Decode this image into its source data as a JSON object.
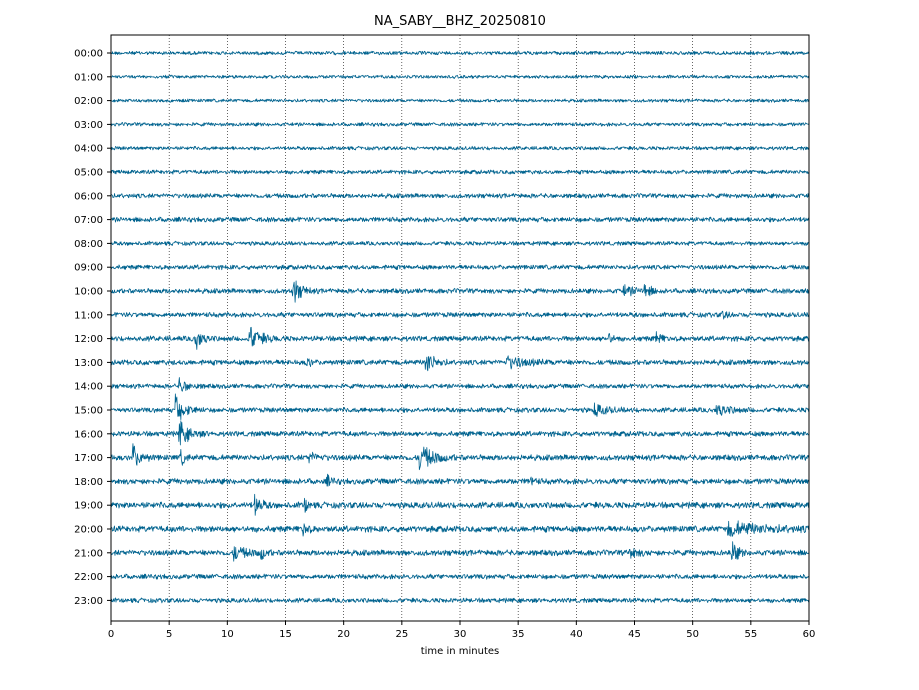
{
  "chart_data": {
    "type": "line",
    "title": "NA_SABY__BHZ_20250810",
    "xlabel": "time in minutes",
    "ylabel": "",
    "xlim": [
      0,
      60
    ],
    "x_ticks": [
      "0",
      "5",
      "10",
      "15",
      "20",
      "25",
      "30",
      "35",
      "40",
      "45",
      "50",
      "55",
      "60"
    ],
    "y_tick_labels": [
      "00:00",
      "01:00",
      "02:00",
      "03:00",
      "04:00",
      "05:00",
      "06:00",
      "07:00",
      "08:00",
      "09:00",
      "10:00",
      "11:00",
      "12:00",
      "13:00",
      "14:00",
      "15:00",
      "16:00",
      "17:00",
      "18:00",
      "19:00",
      "20:00",
      "21:00",
      "22:00",
      "23:00"
    ],
    "trace_color": "#00638f",
    "grid": "vertical dotted lines at each x tick",
    "legend": "none",
    "background_noise_amplitude": [
      0.22,
      0.2,
      0.2,
      0.22,
      0.22,
      0.25,
      0.28,
      0.3,
      0.25,
      0.28,
      0.3,
      0.3,
      0.32,
      0.32,
      0.28,
      0.3,
      0.32,
      0.35,
      0.35,
      0.38,
      0.38,
      0.35,
      0.3,
      0.28
    ],
    "events": [
      {
        "hour": "10:00",
        "start_min": 15.6,
        "duration_min": 1.0,
        "amplitude": 1.0
      },
      {
        "hour": "10:00",
        "start_min": 45.8,
        "duration_min": 0.8,
        "amplitude": 0.6
      },
      {
        "hour": "10:00",
        "start_min": 44.0,
        "duration_min": 1.5,
        "amplitude": 0.35
      },
      {
        "hour": "11:00",
        "start_min": 52.5,
        "duration_min": 0.6,
        "amplitude": 0.3
      },
      {
        "hour": "12:00",
        "start_min": 7.2,
        "duration_min": 0.8,
        "amplitude": 1.0
      },
      {
        "hour": "12:00",
        "start_min": 11.8,
        "duration_min": 1.4,
        "amplitude": 1.0
      },
      {
        "hour": "12:00",
        "start_min": 42.7,
        "duration_min": 0.5,
        "amplitude": 0.5
      },
      {
        "hour": "12:00",
        "start_min": 46.8,
        "duration_min": 0.6,
        "amplitude": 0.6
      },
      {
        "hour": "13:00",
        "start_min": 16.8,
        "duration_min": 0.4,
        "amplitude": 0.6
      },
      {
        "hour": "13:00",
        "start_min": 27.0,
        "duration_min": 1.0,
        "amplitude": 1.0
      },
      {
        "hour": "13:00",
        "start_min": 34.0,
        "duration_min": 2.5,
        "amplitude": 0.4
      },
      {
        "hour": "14:00",
        "start_min": 5.8,
        "duration_min": 1.2,
        "amplitude": 0.5
      },
      {
        "hour": "15:00",
        "start_min": 5.5,
        "duration_min": 1.2,
        "amplitude": 1.0
      },
      {
        "hour": "15:00",
        "start_min": 41.5,
        "duration_min": 1.5,
        "amplitude": 0.45
      },
      {
        "hour": "15:00",
        "start_min": 52.0,
        "duration_min": 1.5,
        "amplitude": 0.45
      },
      {
        "hour": "16:00",
        "start_min": 5.8,
        "duration_min": 1.2,
        "amplitude": 1.0
      },
      {
        "hour": "17:00",
        "start_min": 1.8,
        "duration_min": 0.9,
        "amplitude": 1.0
      },
      {
        "hour": "17:00",
        "start_min": 6.0,
        "duration_min": 0.5,
        "amplitude": 0.6
      },
      {
        "hour": "17:00",
        "start_min": 26.5,
        "duration_min": 1.6,
        "amplitude": 1.0
      },
      {
        "hour": "17:00",
        "start_min": 17.0,
        "duration_min": 1.0,
        "amplitude": 0.35
      },
      {
        "hour": "18:00",
        "start_min": 18.5,
        "duration_min": 0.6,
        "amplitude": 0.4
      },
      {
        "hour": "18:00",
        "start_min": 36.0,
        "duration_min": 0.5,
        "amplitude": 0.4
      },
      {
        "hour": "19:00",
        "start_min": 12.3,
        "duration_min": 0.8,
        "amplitude": 0.8
      },
      {
        "hour": "19:00",
        "start_min": 16.6,
        "duration_min": 0.4,
        "amplitude": 0.6
      },
      {
        "hour": "20:00",
        "start_min": 16.5,
        "duration_min": 0.5,
        "amplitude": 0.6
      },
      {
        "hour": "20:00",
        "start_min": 53.0,
        "duration_min": 5.0,
        "amplitude": 0.45
      },
      {
        "hour": "21:00",
        "start_min": 10.5,
        "duration_min": 1.5,
        "amplitude": 0.5
      },
      {
        "hour": "21:00",
        "start_min": 12.8,
        "duration_min": 0.6,
        "amplitude": 0.6
      },
      {
        "hour": "21:00",
        "start_min": 53.3,
        "duration_min": 0.7,
        "amplitude": 1.0
      },
      {
        "hour": "21:00",
        "start_min": 44.5,
        "duration_min": 1.0,
        "amplitude": 0.4
      }
    ]
  }
}
